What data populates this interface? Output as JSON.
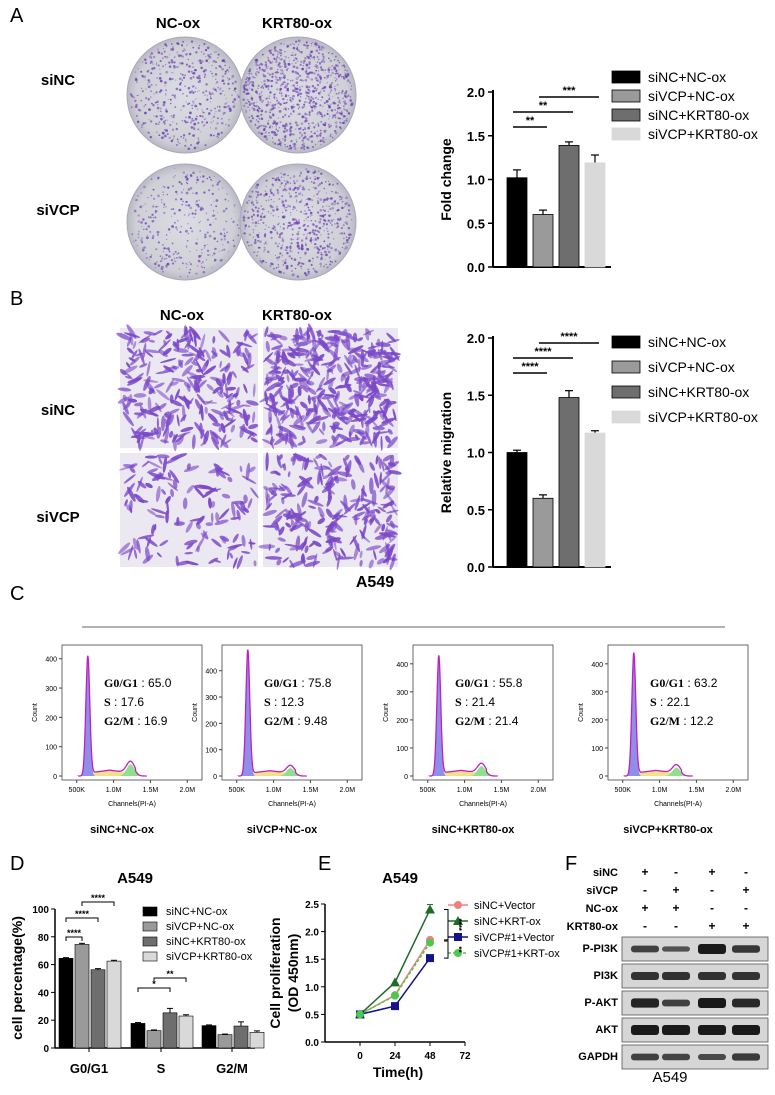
{
  "panel_labels": {
    "A": "A",
    "B": "B",
    "C": "C",
    "D": "D",
    "E": "E",
    "F": "F"
  },
  "panel_A": {
    "columns": [
      "NC-ox",
      "KRT80-ox"
    ],
    "rows": [
      "siNC",
      "siVCP"
    ]
  },
  "panel_B": {
    "columns": [
      "NC-ox",
      "KRT80-ox"
    ],
    "rows": [
      "siNC",
      "siVCP"
    ]
  },
  "panel_C": {
    "title": "A549"
  },
  "panel_D": {
    "title": "A549"
  },
  "panel_E": {
    "title": "A549"
  },
  "panel_F": {
    "conditions": [
      {
        "name": "siNC",
        "signs": [
          "+",
          "-",
          "+",
          "-"
        ]
      },
      {
        "name": "siVCP",
        "signs": [
          "-",
          "+",
          "-",
          "+"
        ]
      },
      {
        "name": "NC-ox",
        "signs": [
          "+",
          "+",
          "-",
          "-"
        ]
      },
      {
        "name": "KRT80-ox",
        "signs": [
          "-",
          "-",
          "+",
          "+"
        ]
      }
    ],
    "blots": [
      "P-PI3K",
      "PI3K",
      "P-AKT",
      "AKT",
      "GAPDH"
    ],
    "caption": "A549"
  },
  "colors": {
    "bar1": "#000000",
    "bar2": "#9a9a9a",
    "bar3": "#6e6e6e",
    "bar4": "#d9d9d9",
    "g1_fill": "#8f8fe8",
    "s_fill": "#f3e08a",
    "g2m_fill": "#8fe08a",
    "outline": "#c020c0",
    "stain": "#6a3fb0"
  },
  "chart_data": [
    {
      "id": "A",
      "type": "bar",
      "categories": [
        "siNC+NC-ox",
        "siVCP+NC-ox",
        "siNC+KRT80-ox",
        "siVCP+KRT80-ox"
      ],
      "values": [
        1.02,
        0.6,
        1.39,
        1.19
      ],
      "errors": [
        0.09,
        0.05,
        0.04,
        0.09
      ],
      "ylabel": "Fold change",
      "ylim": [
        0,
        2
      ],
      "yticks": [
        "0.0",
        "0.5",
        "1.0",
        "1.5",
        "2.0"
      ],
      "legend": [
        "siNC+NC-ox",
        "siVCP+NC-ox",
        "siNC+KRT80-ox",
        "siVCP+KRT80-ox"
      ],
      "legend_position": "right",
      "significance": [
        {
          "pair": [
            0,
            1
          ],
          "label": "**"
        },
        {
          "pair": [
            0,
            2
          ],
          "label": "**"
        },
        {
          "pair": [
            1,
            3
          ],
          "label": "***"
        }
      ]
    },
    {
      "id": "B",
      "type": "bar",
      "categories": [
        "siNC+NC-ox",
        "siVCP+NC-ox",
        "siNC+KRT80-ox",
        "siVCP+KRT80-ox"
      ],
      "values": [
        1.0,
        0.6,
        1.48,
        1.17
      ],
      "errors": [
        0.02,
        0.03,
        0.06,
        0.02
      ],
      "ylabel": "Relative migration",
      "ylim": [
        0,
        2
      ],
      "yticks": [
        "0.0",
        "0.5",
        "1.0",
        "1.5",
        "2.0"
      ],
      "legend": [
        "siNC+NC-ox",
        "siVCP+NC-ox",
        "siNC+KRT80-ox",
        "siVCP+KRT80-ox"
      ],
      "legend_position": "right",
      "significance": [
        {
          "pair": [
            0,
            1
          ],
          "label": "****"
        },
        {
          "pair": [
            0,
            2
          ],
          "label": "****"
        },
        {
          "pair": [
            1,
            3
          ],
          "label": "****"
        }
      ]
    },
    {
      "id": "C",
      "type": "area",
      "xlabel": "Channels(PI-A)",
      "ylabel": "Count",
      "xticks": [
        "500K",
        "1.0M",
        "1.5M",
        "2.0M"
      ],
      "panels": [
        {
          "caption": "siNC+NC-ox",
          "yticks": [
            "0",
            "100",
            "200",
            "300",
            "400"
          ],
          "ymax": 440,
          "g1_peak": 400,
          "g2_peak": 40,
          "stats": [
            {
              "label": "G0/G1",
              "value": "65.0"
            },
            {
              "label": "S",
              "value": "17.6"
            },
            {
              "label": "G2/M",
              "value": "16.9"
            }
          ]
        },
        {
          "caption": "siVCP+NC-ox",
          "yticks": [
            "0",
            "100",
            "200",
            "300",
            "400"
          ],
          "ymax": 490,
          "g1_peak": 470,
          "g2_peak": 30,
          "stats": [
            {
              "label": "G0/G1",
              "value": "75.8"
            },
            {
              "label": "S",
              "value": "12.3"
            },
            {
              "label": "G2/M",
              "value": "9.48"
            }
          ]
        },
        {
          "caption": "siNC+KRT80-ox",
          "yticks": [
            "0",
            "100",
            "200",
            "300",
            "400"
          ],
          "ymax": 460,
          "g1_peak": 420,
          "g2_peak": 35,
          "stats": [
            {
              "label": "G0/G1",
              "value": "55.8"
            },
            {
              "label": "S",
              "value": "21.4"
            },
            {
              "label": "G2/M",
              "value": "21.4"
            }
          ]
        },
        {
          "caption": "siVCP+KRT80-ox",
          "yticks": [
            "0",
            "100",
            "200",
            "300",
            "400"
          ],
          "ymax": 460,
          "g1_peak": 430,
          "g2_peak": 30,
          "stats": [
            {
              "label": "G0/G1",
              "value": "63.2"
            },
            {
              "label": "S",
              "value": "22.1"
            },
            {
              "label": "G2/M",
              "value": "12.2"
            }
          ]
        }
      ]
    },
    {
      "id": "D",
      "type": "bar",
      "title": "A549",
      "categories": [
        "G0/G1",
        "S",
        "G2/M"
      ],
      "series": [
        {
          "name": "siNC+NC-ox",
          "values": [
            64.5,
            17.7,
            16.1
          ],
          "errors": [
            0.5,
            0.6,
            0.5
          ]
        },
        {
          "name": "siVCP+NC-ox",
          "values": [
            74.5,
            12.5,
            9.6
          ],
          "errors": [
            0.8,
            0.5,
            0.4
          ]
        },
        {
          "name": "siNC+KRT80-ox",
          "values": [
            56.3,
            25.3,
            15.8
          ],
          "errors": [
            0.8,
            3.2,
            3.0
          ]
        },
        {
          "name": "siVCP+KRT80-ox",
          "values": [
            62.5,
            23.0,
            11.3
          ],
          "errors": [
            0.6,
            0.9,
            1.0
          ]
        }
      ],
      "ylabel": "cell percentage(%)",
      "ylim": [
        0,
        100
      ],
      "yticks": [
        "0",
        "20",
        "40",
        "60",
        "80",
        "100"
      ],
      "legend_position": "top-right",
      "significance": [
        {
          "category": 0,
          "pair": [
            0,
            1
          ],
          "label": "****"
        },
        {
          "category": 0,
          "pair": [
            0,
            2
          ],
          "label": "****"
        },
        {
          "category": 0,
          "pair": [
            1,
            3
          ],
          "label": "****"
        },
        {
          "category": 1,
          "pair": [
            0,
            2
          ],
          "label": "*"
        },
        {
          "category": 1,
          "pair": [
            1,
            3
          ],
          "label": "**"
        }
      ]
    },
    {
      "id": "E",
      "type": "line",
      "title": "A549",
      "x": [
        0,
        24,
        48
      ],
      "series": [
        {
          "name": "siNC+Vector",
          "values": [
            0.5,
            0.85,
            1.85
          ],
          "color": "#f08080",
          "marker": "circle"
        },
        {
          "name": "siNC+KRT-ox",
          "values": [
            0.5,
            1.08,
            2.4
          ],
          "color": "#1f6b2a",
          "marker": "triangle"
        },
        {
          "name": "siVCP#1+Vector",
          "values": [
            0.5,
            0.65,
            1.52
          ],
          "color": "#14148a",
          "marker": "square"
        },
        {
          "name": "siVCP#1+KRT-ox",
          "values": [
            0.5,
            0.84,
            1.8
          ],
          "color": "#4cc94c",
          "marker": "circle",
          "dashed": true
        }
      ],
      "xlabel": "Time(h)",
      "ylabel": [
        "Cell proliferation",
        "(OD 450nm)"
      ],
      "xlim": [
        -24,
        72
      ],
      "xticks": [
        "0",
        "24",
        "48",
        "72"
      ],
      "ylim": [
        0,
        2.5
      ],
      "yticks": [
        "0.0",
        "0.5",
        "1.0",
        "1.5",
        "2.0",
        "2.5"
      ],
      "legend_position": "right",
      "significance": [
        {
          "label": "****"
        },
        {
          "label": "**"
        }
      ]
    }
  ]
}
